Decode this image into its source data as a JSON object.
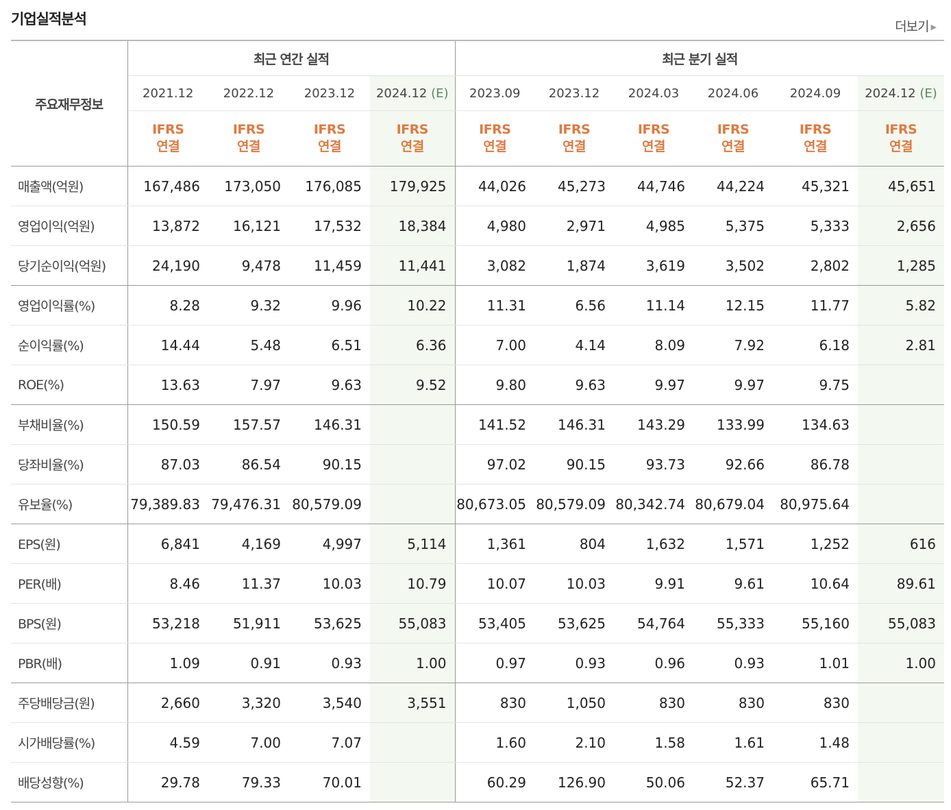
{
  "header": {
    "title": "기업실적분석",
    "more_label": "더보기"
  },
  "table": {
    "row_header": "주요재무정보",
    "group_annual": "최근 연간 실적",
    "group_quarter": "최근 분기 실적",
    "ifrs_line1": "IFRS",
    "ifrs_line2": "연결",
    "estimate_mark": "(E)",
    "periods": [
      "2021.12",
      "2022.12",
      "2023.12",
      "2024.12",
      "2023.09",
      "2023.12",
      "2024.03",
      "2024.06",
      "2024.09",
      "2024.12"
    ],
    "rows": [
      {
        "label": "매출액(억원)",
        "values": [
          "167,486",
          "173,050",
          "176,085",
          "179,925",
          "44,026",
          "45,273",
          "44,746",
          "44,224",
          "45,321",
          "45,651"
        ]
      },
      {
        "label": "영업이익(억원)",
        "values": [
          "13,872",
          "16,121",
          "17,532",
          "18,384",
          "4,980",
          "2,971",
          "4,985",
          "5,375",
          "5,333",
          "2,656"
        ]
      },
      {
        "label": "당기순이익(억원)",
        "values": [
          "24,190",
          "9,478",
          "11,459",
          "11,441",
          "3,082",
          "1,874",
          "3,619",
          "3,502",
          "2,802",
          "1,285"
        ]
      },
      {
        "label": "영업이익률(%)",
        "values": [
          "8.28",
          "9.32",
          "9.96",
          "10.22",
          "11.31",
          "6.56",
          "11.14",
          "12.15",
          "11.77",
          "5.82"
        ]
      },
      {
        "label": "순이익률(%)",
        "values": [
          "14.44",
          "5.48",
          "6.51",
          "6.36",
          "7.00",
          "4.14",
          "8.09",
          "7.92",
          "6.18",
          "2.81"
        ]
      },
      {
        "label": "ROE(%)",
        "values": [
          "13.63",
          "7.97",
          "9.63",
          "9.52",
          "9.80",
          "9.63",
          "9.97",
          "9.97",
          "9.75",
          ""
        ]
      },
      {
        "label": "부채비율(%)",
        "values": [
          "150.59",
          "157.57",
          "146.31",
          "",
          "141.52",
          "146.31",
          "143.29",
          "133.99",
          "134.63",
          ""
        ]
      },
      {
        "label": "당좌비율(%)",
        "values": [
          "87.03",
          "86.54",
          "90.15",
          "",
          "97.02",
          "90.15",
          "93.73",
          "92.66",
          "86.78",
          ""
        ]
      },
      {
        "label": "유보율(%)",
        "values": [
          "79,389.83",
          "79,476.31",
          "80,579.09",
          "",
          "80,673.05",
          "80,579.09",
          "80,342.74",
          "80,679.04",
          "80,975.64",
          ""
        ]
      },
      {
        "label": "EPS(원)",
        "values": [
          "6,841",
          "4,169",
          "4,997",
          "5,114",
          "1,361",
          "804",
          "1,632",
          "1,571",
          "1,252",
          "616"
        ]
      },
      {
        "label": "PER(배)",
        "values": [
          "8.46",
          "11.37",
          "10.03",
          "10.79",
          "10.07",
          "10.03",
          "9.91",
          "9.61",
          "10.64",
          "89.61"
        ]
      },
      {
        "label": "BPS(원)",
        "values": [
          "53,218",
          "51,911",
          "53,625",
          "55,083",
          "53,405",
          "53,625",
          "54,764",
          "55,333",
          "55,160",
          "55,083"
        ]
      },
      {
        "label": "PBR(배)",
        "values": [
          "1.09",
          "0.91",
          "0.93",
          "1.00",
          "0.97",
          "0.93",
          "0.96",
          "0.93",
          "1.01",
          "1.00"
        ]
      },
      {
        "label": "주당배당금(원)",
        "values": [
          "2,660",
          "3,320",
          "3,540",
          "3,551",
          "830",
          "1,050",
          "830",
          "830",
          "830",
          ""
        ]
      },
      {
        "label": "시가배당률(%)",
        "values": [
          "4.59",
          "7.00",
          "7.07",
          "",
          "1.60",
          "2.10",
          "1.58",
          "1.61",
          "1.48",
          ""
        ]
      },
      {
        "label": "배당성향(%)",
        "values": [
          "29.78",
          "79.33",
          "70.01",
          "",
          "60.29",
          "126.90",
          "50.06",
          "52.37",
          "65.71",
          ""
        ]
      }
    ]
  }
}
